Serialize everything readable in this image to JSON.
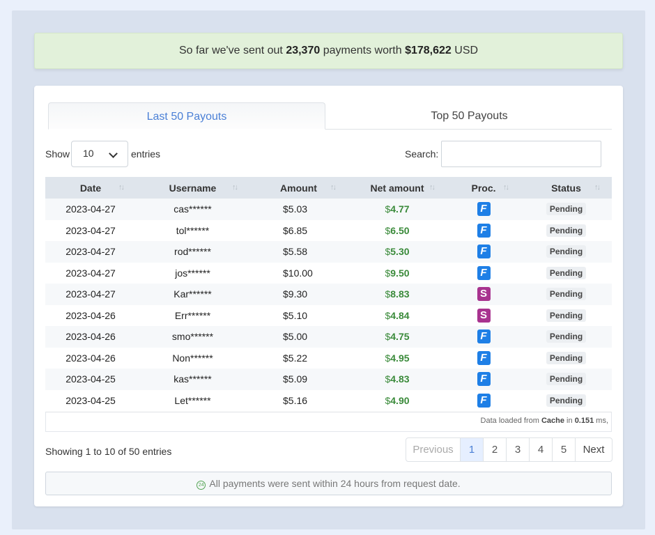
{
  "banner": {
    "prefix": "So far we've sent out ",
    "count": "23,370",
    "middle": " payments worth ",
    "amount": "$178,622",
    "suffix": " USD"
  },
  "tabs": [
    {
      "label": "Last 50 Payouts"
    },
    {
      "label": "Top 50 Payouts"
    }
  ],
  "controls": {
    "show_label": "Show",
    "page_size": "10",
    "entries_label": "entries",
    "search_label": "Search:",
    "search_value": ""
  },
  "table": {
    "headers": [
      "Date",
      "Username",
      "Amount",
      "Net amount",
      "Proc.",
      "Status"
    ],
    "rows": [
      {
        "date": "2023-04-27",
        "user": "cas******",
        "amount": "$5.03",
        "net_sym": "$",
        "net": "4.77",
        "proc": "F",
        "status": "Pending"
      },
      {
        "date": "2023-04-27",
        "user": "tol******",
        "amount": "$6.85",
        "net_sym": "$",
        "net": "6.50",
        "proc": "F",
        "status": "Pending"
      },
      {
        "date": "2023-04-27",
        "user": "rod******",
        "amount": "$5.58",
        "net_sym": "$",
        "net": "5.30",
        "proc": "F",
        "status": "Pending"
      },
      {
        "date": "2023-04-27",
        "user": "jos******",
        "amount": "$10.00",
        "net_sym": "$",
        "net": "9.50",
        "proc": "F",
        "status": "Pending"
      },
      {
        "date": "2023-04-27",
        "user": "Kar******",
        "amount": "$9.30",
        "net_sym": "$",
        "net": "8.83",
        "proc": "S",
        "status": "Pending"
      },
      {
        "date": "2023-04-26",
        "user": "Err******",
        "amount": "$5.10",
        "net_sym": "$",
        "net": "4.84",
        "proc": "S",
        "status": "Pending"
      },
      {
        "date": "2023-04-26",
        "user": "smo******",
        "amount": "$5.00",
        "net_sym": "$",
        "net": "4.75",
        "proc": "F",
        "status": "Pending"
      },
      {
        "date": "2023-04-26",
        "user": "Non******",
        "amount": "$5.22",
        "net_sym": "$",
        "net": "4.95",
        "proc": "F",
        "status": "Pending"
      },
      {
        "date": "2023-04-25",
        "user": "kas******",
        "amount": "$5.09",
        "net_sym": "$",
        "net": "4.83",
        "proc": "F",
        "status": "Pending"
      },
      {
        "date": "2023-04-25",
        "user": "Let******",
        "amount": "$5.16",
        "net_sym": "$",
        "net": "4.90",
        "proc": "F",
        "status": "Pending"
      }
    ]
  },
  "footnote": {
    "prefix": "Data loaded from ",
    "source": "Cache",
    "middle": " in ",
    "time": "0.151",
    "suffix": " ms,"
  },
  "info": "Showing 1 to 10 of 50 entries",
  "pagination": {
    "previous": "Previous",
    "pages": [
      "1",
      "2",
      "3",
      "4",
      "5"
    ],
    "next": "Next",
    "current": "1"
  },
  "note": {
    "icon_text": "24",
    "text": "All payments were sent within 24 hours from request date."
  },
  "colors": {
    "accent": "#4a7fd6",
    "net_green": "#3a8a3a",
    "proc_f": "#1e7fe6",
    "proc_s": "#a8338f"
  }
}
